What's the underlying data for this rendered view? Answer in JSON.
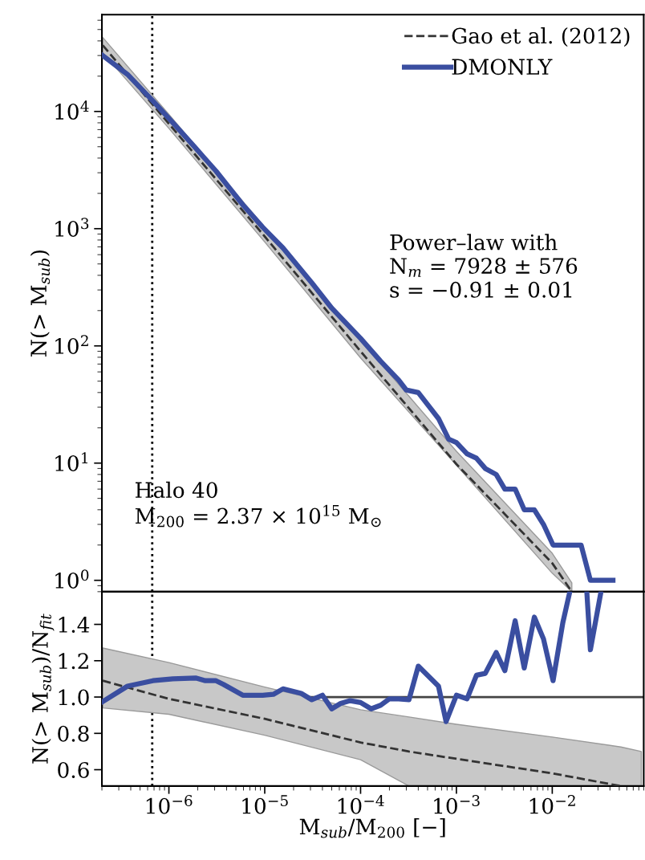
{
  "chart_data": [
    {
      "type": "line",
      "log": "xy",
      "xlim": [
        2e-07,
        0.09
      ],
      "ylim": [
        0.8,
        67000
      ],
      "xticks": [
        {
          "value": 1e-06,
          "label": null
        },
        {
          "value": 1e-05,
          "label": null
        },
        {
          "value": 0.0001,
          "label": null
        },
        {
          "value": 0.001,
          "label": null
        },
        {
          "value": 0.01,
          "label": null
        }
      ],
      "yticks": [
        {
          "value": 1,
          "label": "10$^{0}$"
        },
        {
          "value": 10,
          "label": "10$^{1}$"
        },
        {
          "value": 100,
          "label": "10$^{2}$"
        },
        {
          "value": 1000,
          "label": "10$^{3}$"
        },
        {
          "value": 10000,
          "label": "10$^{4}$"
        }
      ],
      "tick_labels": "y",
      "ylabel": "N(> M$_{sub}$)",
      "legend": "top right",
      "grid": false,
      "annotations": [
        "Power–law with\nN$_{m}$ = 7928 ± 576\ns = −0.91 ± 0.01",
        "Halo 40\nM$_{200}$ = 2.37 × 10$^{15}$ M$_{⊙}$"
      ],
      "ref_lines": [
        {
          "axis": "x",
          "value": 6.7e-07,
          "color": "#000000",
          "line_style": "dotted"
        }
      ],
      "series": [
        {
          "name": "Gao et al. (2012)",
          "color": "#333333",
          "line_style": "dashed",
          "x": [
            2.04e-07,
            1e-06,
            1e-05,
            0.0001,
            0.001,
            0.01,
            0.016
          ],
          "values": [
            36700,
            7850,
            858,
            90,
            9.8,
            1.4,
            0.8
          ],
          "upper": [
            42800,
            9430,
            1029,
            112,
            12.6,
            1.7,
            0.95
          ],
          "lower": [
            31700,
            7170,
            770,
            79,
            9.6,
            1.15,
            0.8
          ]
        },
        {
          "name": "DMONLY",
          "color": "#3a4ea0",
          "line_style": "solid",
          "x": [
            2.04e-07,
            3.7e-07,
            6.8e-07,
            1.1e-06,
            1.9e-06,
            3.1e-06,
            5.9e-06,
            9.5e-06,
            1.55e-05,
            3.1e-05,
            5e-05,
            0.0001,
            0.000162,
            0.00025,
            0.0003,
            0.0004,
            0.00065,
            0.00083,
            0.001,
            0.00129,
            0.00162,
            0.002,
            0.0026,
            0.0032,
            0.0041,
            0.0051,
            0.0065,
            0.0081,
            0.0102,
            0.02,
            0.025,
            0.043
          ],
          "values": [
            30000,
            20700,
            12300,
            8000,
            4870,
            3100,
            1600,
            1030,
            685,
            345,
            210,
            116,
            74,
            51,
            42,
            40,
            24,
            16,
            15,
            12,
            11,
            9,
            8,
            6,
            6,
            4,
            4,
            3,
            2,
            2,
            1,
            1
          ]
        }
      ]
    },
    {
      "type": "line",
      "log": "x",
      "xlim": [
        2e-07,
        0.09
      ],
      "ylim": [
        0.51,
        1.58
      ],
      "xticks": [
        {
          "value": 1e-06,
          "label": "10$^{−6}$"
        },
        {
          "value": 1e-05,
          "label": "10$^{−5}$"
        },
        {
          "value": 0.0001,
          "label": "10$^{−4}$"
        },
        {
          "value": 0.001,
          "label": "10$^{−3}$"
        },
        {
          "value": 0.01,
          "label": "10$^{−2}$"
        }
      ],
      "yticks": [
        0.6,
        0.8,
        {
          "value": 1,
          "label": "1.0"
        },
        1.2,
        1.4
      ],
      "grid": false,
      "xlabel": "M$_{sub}$/M$_{200}$ [−]",
      "ylabel": "N(> M$_{sub}$)/N$_{fit}$",
      "ref_lines": [
        {
          "axis": "x",
          "value": 6.7e-07,
          "color": "#000000",
          "line_style": "dotted"
        },
        {
          "axis": "y",
          "value": 1.0,
          "color": "#444444",
          "line_style": "solid"
        }
      ],
      "series": [
        {
          "color": "#333333",
          "line_style": "dashed",
          "x": [
            2.04e-07,
            1e-06,
            1e-05,
            0.0001,
            0.00032,
            0.001,
            0.01,
            0.052,
            0.085
          ],
          "values": [
            1.09,
            0.99,
            0.88,
            0.75,
            0.7,
            0.66,
            0.58,
            0.51,
            null
          ],
          "upper": [
            1.27,
            1.19,
            1.055,
            0.93,
            0.89,
            0.85,
            0.78,
            0.725,
            0.7
          ],
          "lower": [
            0.94,
            0.905,
            0.79,
            0.655,
            0.51,
            0.51,
            0.51,
            0.51,
            0.51
          ]
        },
        {
          "color": "#3a4ea0",
          "line_style": "solid",
          "x": [
            2.04e-07,
            3.7e-07,
            6.8e-07,
            1.1e-06,
            1.9e-06,
            2.4e-06,
            3.1e-06,
            3.7e-06,
            5.9e-06,
            9.5e-06,
            1.23e-05,
            1.55e-05,
            2.4e-05,
            3.1e-05,
            4e-05,
            5e-05,
            6.2e-05,
            7.8e-05,
            0.0001,
            0.000129,
            0.000162,
            0.0002,
            0.00025,
            0.00032,
            0.0004,
            0.00065,
            0.00078,
            0.001,
            0.00129,
            0.00162,
            0.002,
            0.0026,
            0.0032,
            0.0041,
            0.0051,
            0.0065,
            0.0081,
            0.0102,
            0.0129,
            0.0151,
            0.02,
            0.023,
            0.025,
            0.032
          ],
          "values": [
            0.975,
            1.06,
            1.09,
            1.1,
            1.105,
            1.09,
            1.09,
            1.07,
            1.01,
            1.01,
            1.015,
            1.045,
            1.02,
            0.985,
            1.01,
            0.935,
            0.965,
            0.98,
            0.97,
            0.935,
            0.955,
            0.99,
            0.99,
            0.985,
            1.17,
            1.06,
            0.865,
            1.01,
            0.99,
            1.12,
            1.13,
            1.245,
            1.145,
            1.42,
            1.16,
            1.44,
            1.32,
            1.09,
            1.41,
            1.57,
            null,
            1.57,
            1.26,
            1.57
          ]
        }
      ]
    }
  ]
}
